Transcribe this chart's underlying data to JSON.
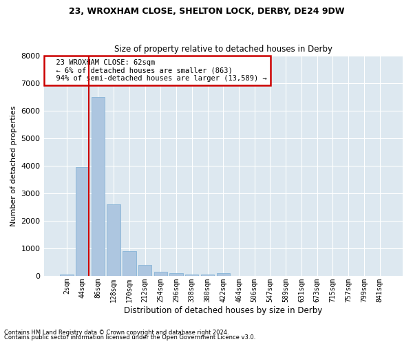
{
  "title": "23, WROXHAM CLOSE, SHELTON LOCK, DERBY, DE24 9DW",
  "subtitle": "Size of property relative to detached houses in Derby",
  "xlabel": "Distribution of detached houses by size in Derby",
  "ylabel": "Number of detached properties",
  "footnote1": "Contains HM Land Registry data © Crown copyright and database right 2024.",
  "footnote2": "Contains public sector information licensed under the Open Government Licence v3.0.",
  "bar_color": "#adc6e0",
  "bar_edge_color": "#7aadd4",
  "bg_color": "#dde8f0",
  "grid_color": "#ffffff",
  "annotation_box_color": "#cc0000",
  "annotation_line_color": "#cc0000",
  "categories": [
    "2sqm",
    "44sqm",
    "86sqm",
    "128sqm",
    "170sqm",
    "212sqm",
    "254sqm",
    "296sqm",
    "338sqm",
    "380sqm",
    "422sqm",
    "464sqm",
    "506sqm",
    "547sqm",
    "589sqm",
    "631sqm",
    "673sqm",
    "715sqm",
    "757sqm",
    "799sqm",
    "841sqm"
  ],
  "values": [
    50,
    3950,
    6500,
    2600,
    900,
    400,
    145,
    100,
    50,
    45,
    100,
    0,
    0,
    0,
    0,
    0,
    0,
    0,
    0,
    0,
    0
  ],
  "ylim": [
    0,
    8000
  ],
  "yticks": [
    0,
    1000,
    2000,
    3000,
    4000,
    5000,
    6000,
    7000,
    8000
  ],
  "property_bin_index": 1.43,
  "annotation_text_line1": "  23 WROXHAM CLOSE: 62sqm",
  "annotation_text_line2": "  ← 6% of detached houses are smaller (863)",
  "annotation_text_line3": "  94% of semi-detached houses are larger (13,589) →"
}
